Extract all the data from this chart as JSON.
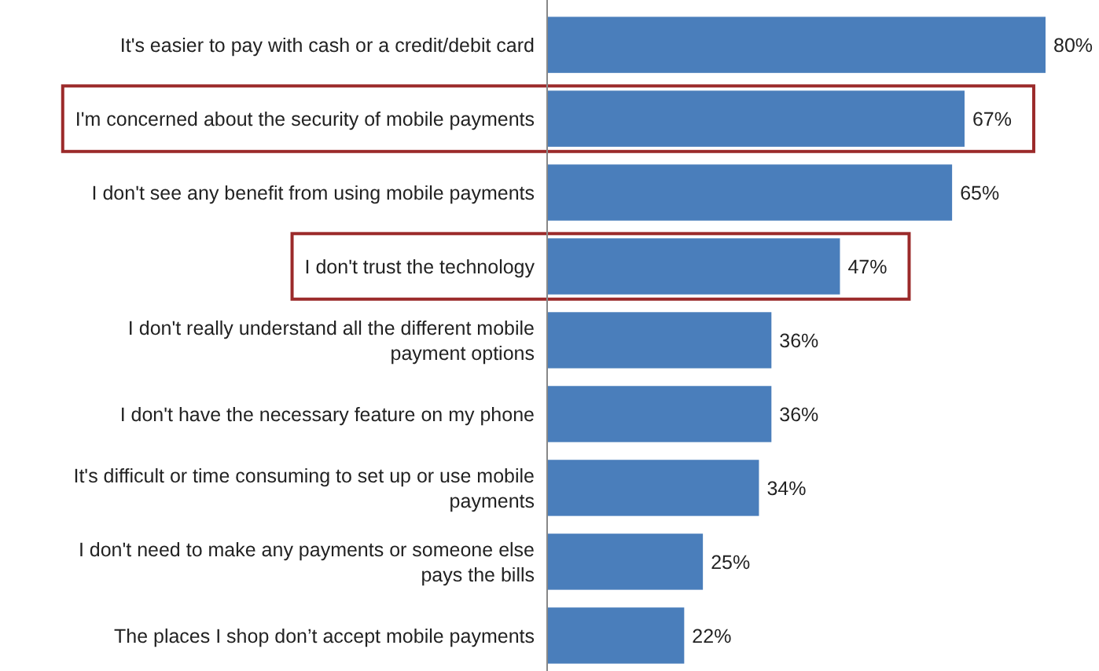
{
  "chart_data": {
    "type": "bar",
    "orientation": "horizontal",
    "categories": [
      "It's easier to pay with cash or a credit/debit card",
      "I'm concerned about the security of mobile payments",
      "I don't see any benefit from using mobile payments",
      "I don't trust the technology",
      "I don't really understand all the different mobile payment options",
      "I don't have the necessary feature on my phone",
      "It's difficult or time consuming to set up or use mobile payments",
      "I don't need to make any payments or someone else pays the bills",
      "The places I shop don’t accept mobile payments"
    ],
    "values": [
      80,
      67,
      65,
      47,
      36,
      36,
      34,
      25,
      22
    ],
    "value_labels": [
      "80%",
      "67%",
      "65%",
      "47%",
      "36%",
      "36%",
      "34%",
      "25%",
      "22%"
    ],
    "color": "#4a7ebb"
  }
}
